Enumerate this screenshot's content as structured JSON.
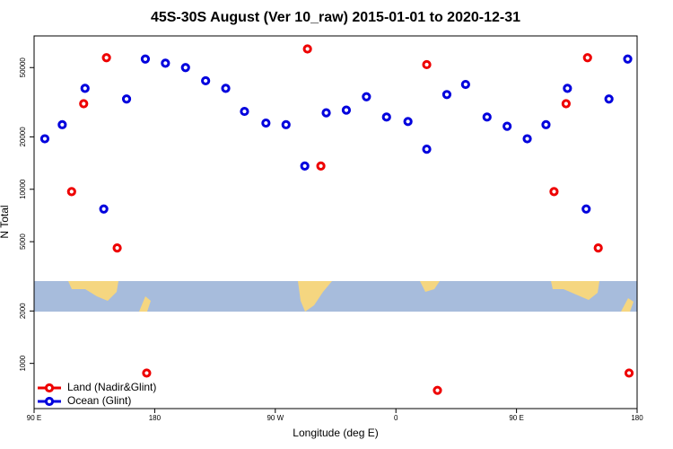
{
  "chart_data": {
    "type": "scatter",
    "title": "45S-30S August (Ver 10_raw)   2015-01-01 to 2020-12-31",
    "x_label": "Longitude (deg E)",
    "y_label": "N Total",
    "log_y": true,
    "legend": "lower left",
    "xlim": [
      90,
      540
    ],
    "ylim": [
      550,
      76000
    ],
    "xticks": [
      {
        "value": 90,
        "label": "90 E"
      },
      {
        "value": 180,
        "label": "180"
      },
      {
        "value": 270,
        "label": "90 W"
      },
      {
        "value": 360,
        "label": "0"
      },
      {
        "value": 450,
        "label": "90 E"
      },
      {
        "value": 540,
        "label": "180"
      }
    ],
    "yticks": [
      1000,
      2000,
      5000,
      10000,
      20000,
      50000
    ],
    "series": [
      {
        "name": "Land (Nadir&Glint)",
        "color": "#ee0000",
        "x": [
          118,
          127,
          144,
          152,
          174,
          294,
          304,
          383,
          391,
          478,
          487,
          503,
          511,
          534
        ],
        "values": [
          9700,
          31000,
          57000,
          4600,
          880,
          64000,
          13600,
          52000,
          700,
          9700,
          31000,
          57000,
          4600,
          880
        ]
      },
      {
        "name": "Ocean (Glint)",
        "color": "#0000dd",
        "x": [
          98,
          111,
          128,
          142,
          159,
          173,
          188,
          203,
          218,
          233,
          247,
          263,
          278,
          292,
          308,
          323,
          338,
          353,
          369,
          383,
          398,
          412,
          428,
          443,
          458,
          472,
          488,
          502,
          519,
          533
        ],
        "values": [
          19500,
          23500,
          38000,
          7700,
          33000,
          56000,
          53000,
          50000,
          42000,
          38000,
          28000,
          24000,
          23500,
          13600,
          27500,
          28500,
          34000,
          26000,
          24500,
          17000,
          35000,
          40000,
          26000,
          23000,
          19500,
          23500,
          38000,
          7700,
          33000,
          56000
        ]
      }
    ]
  }
}
